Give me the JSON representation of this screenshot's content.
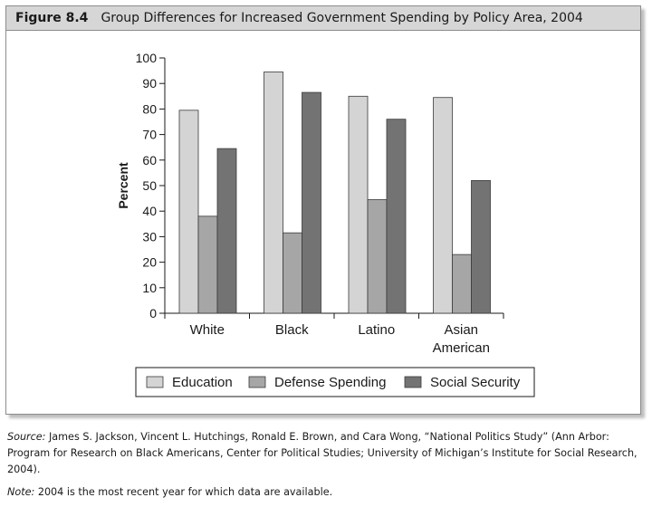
{
  "figure": {
    "label": "Figure 8.4",
    "title": "Group Differences for Increased Government Spending by Policy Area, 2004"
  },
  "chart_data": {
    "type": "bar",
    "title": "Group Differences for Increased Government Spending by Policy Area, 2004",
    "categories": [
      [
        "White"
      ],
      [
        "Black"
      ],
      [
        "Latino"
      ],
      [
        "Asian",
        "American"
      ]
    ],
    "series": [
      {
        "name": "Education",
        "values": [
          79.5,
          94.5,
          85,
          84.5
        ],
        "color": "#d4d4d4"
      },
      {
        "name": "Defense Spending",
        "values": [
          38,
          31.5,
          44.5,
          23
        ],
        "color": "#a6a6a6"
      },
      {
        "name": "Social Security",
        "values": [
          64.5,
          86.5,
          76,
          52
        ],
        "color": "#737373"
      }
    ],
    "xlabel": "",
    "ylabel": "Percent",
    "ylim": [
      0,
      100
    ],
    "yticks": [
      0,
      10,
      20,
      30,
      40,
      50,
      60,
      70,
      80,
      90,
      100
    ],
    "legend_position": "bottom"
  },
  "source_note": {
    "prefix": "Source:",
    "text": " James S. Jackson, Vincent L. Hutchings, Ronald E. Brown, and Cara Wong, “National Politics Study” (Ann Arbor: Program for Research on Black Americans, Center for Political Studies; University of Michigan’s Institute for Social Research, 2004)."
  },
  "data_note": {
    "prefix": "Note:",
    "text": " 2004 is the most recent year for which data are available."
  }
}
